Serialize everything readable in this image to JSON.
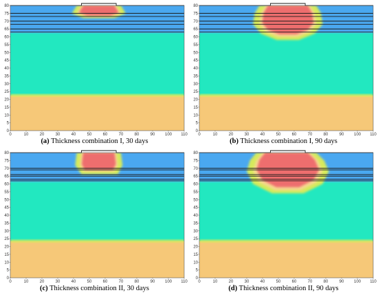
{
  "figure": {
    "captions": [
      {
        "tag": "(a)",
        "text": " Thickness combination I, 30 days"
      },
      {
        "tag": "(b)",
        "text": " Thickness combination I, 90 days"
      },
      {
        "tag": "(c)",
        "text": " Thickness combination II, 30 days"
      },
      {
        "tag": "(d)",
        "text": " Thickness combination II, 90 days"
      }
    ]
  },
  "colors": {
    "upper_layer": "#4aa8f0",
    "middle_layer": "#22e8c0",
    "lower_layer": "#f6c878",
    "warm_core": "#ee6e6e",
    "warm_rim": "#f6d890",
    "transition": "#d6ea5c",
    "interface_line": "#1a1a1a"
  },
  "chart_data": [
    {
      "type": "heatmap",
      "panel": "a",
      "xlim": [
        0,
        110
      ],
      "ylim": [
        0,
        80
      ],
      "x_ticks": [
        0,
        10,
        20,
        30,
        40,
        50,
        60,
        70,
        80,
        90,
        100,
        110
      ],
      "y_ticks": [
        0,
        5,
        10,
        15,
        20,
        25,
        30,
        35,
        40,
        45,
        50,
        55,
        60,
        65,
        70,
        75,
        80
      ],
      "grid": false,
      "layer_lines": [
        75,
        73,
        70,
        68,
        65,
        63
      ],
      "surface_notch": [
        45,
        67
      ],
      "lower_boundary": 22.5,
      "upper_boundary": 62.5,
      "core_profile": [
        [
          45,
          80
        ],
        [
          67,
          80
        ],
        [
          70,
          75
        ],
        [
          64,
          73
        ],
        [
          48,
          73
        ],
        [
          42,
          75
        ]
      ],
      "halo_profile": [
        [
          42,
          80
        ],
        [
          70,
          80
        ],
        [
          73,
          75
        ],
        [
          66,
          72
        ],
        [
          46,
          72
        ],
        [
          39,
          75
        ]
      ]
    },
    {
      "type": "heatmap",
      "panel": "b",
      "xlim": [
        0,
        110
      ],
      "ylim": [
        0,
        80
      ],
      "x_ticks": [
        0,
        10,
        20,
        30,
        40,
        50,
        60,
        70,
        80,
        90,
        100,
        110
      ],
      "y_ticks": [
        0,
        5,
        10,
        15,
        20,
        25,
        30,
        35,
        40,
        45,
        50,
        55,
        60,
        65,
        70,
        75,
        80
      ],
      "grid": false,
      "layer_lines": [
        75,
        73,
        70,
        68,
        65,
        63
      ],
      "surface_notch": [
        45,
        67
      ],
      "lower_boundary": 22.5,
      "upper_boundary": 62.5,
      "core_profile": [
        [
          42,
          80
        ],
        [
          70,
          80
        ],
        [
          73,
          75
        ],
        [
          74,
          68
        ],
        [
          70,
          63
        ],
        [
          62,
          60
        ],
        [
          50,
          60
        ],
        [
          42,
          63
        ],
        [
          38,
          68
        ],
        [
          39,
          75
        ]
      ],
      "halo_profile": [
        [
          38,
          80
        ],
        [
          74,
          80
        ],
        [
          77,
          75
        ],
        [
          78,
          68
        ],
        [
          73,
          62
        ],
        [
          63,
          58
        ],
        [
          49,
          58
        ],
        [
          39,
          62
        ],
        [
          34,
          68
        ],
        [
          35,
          75
        ]
      ]
    },
    {
      "type": "heatmap",
      "panel": "c",
      "xlim": [
        0,
        110
      ],
      "ylim": [
        0,
        80
      ],
      "x_ticks": [
        0,
        10,
        20,
        30,
        40,
        50,
        60,
        70,
        80,
        90,
        100,
        110
      ],
      "y_ticks": [
        0,
        5,
        10,
        15,
        20,
        25,
        30,
        35,
        40,
        45,
        50,
        55,
        60,
        65,
        70,
        75,
        80
      ],
      "grid": false,
      "layer_lines": [
        70,
        69,
        66,
        65,
        63,
        62
      ],
      "surface_notch": [
        45,
        67
      ],
      "lower_boundary": 23.5,
      "upper_boundary": 61.5,
      "core_profile": [
        [
          45,
          80
        ],
        [
          67,
          80
        ],
        [
          68,
          72
        ],
        [
          66,
          68
        ],
        [
          46,
          68
        ],
        [
          44,
          72
        ]
      ],
      "halo_profile": [
        [
          42,
          80
        ],
        [
          70,
          80
        ],
        [
          71,
          72
        ],
        [
          68,
          66
        ],
        [
          45,
          66
        ],
        [
          41,
          72
        ]
      ]
    },
    {
      "type": "heatmap",
      "panel": "d",
      "xlim": [
        0,
        110
      ],
      "ylim": [
        0,
        80
      ],
      "x_ticks": [
        0,
        10,
        20,
        30,
        40,
        50,
        60,
        70,
        80,
        90,
        100,
        110
      ],
      "y_ticks": [
        0,
        5,
        10,
        15,
        20,
        25,
        30,
        35,
        40,
        45,
        50,
        55,
        60,
        65,
        70,
        75,
        80
      ],
      "grid": false,
      "layer_lines": [
        70,
        69,
        66,
        65,
        63,
        62
      ],
      "surface_notch": [
        45,
        67
      ],
      "lower_boundary": 23.5,
      "upper_boundary": 61.5,
      "core_profile": [
        [
          40,
          80
        ],
        [
          70,
          80
        ],
        [
          75,
          75
        ],
        [
          78,
          68
        ],
        [
          74,
          61
        ],
        [
          64,
          56
        ],
        [
          48,
          56
        ],
        [
          38,
          61
        ],
        [
          34,
          68
        ],
        [
          36,
          75
        ]
      ],
      "halo_profile": [
        [
          36,
          80
        ],
        [
          74,
          80
        ],
        [
          79,
          75
        ],
        [
          82,
          68
        ],
        [
          78,
          60
        ],
        [
          66,
          54
        ],
        [
          46,
          54
        ],
        [
          34,
          60
        ],
        [
          30,
          68
        ],
        [
          32,
          75
        ]
      ]
    }
  ]
}
